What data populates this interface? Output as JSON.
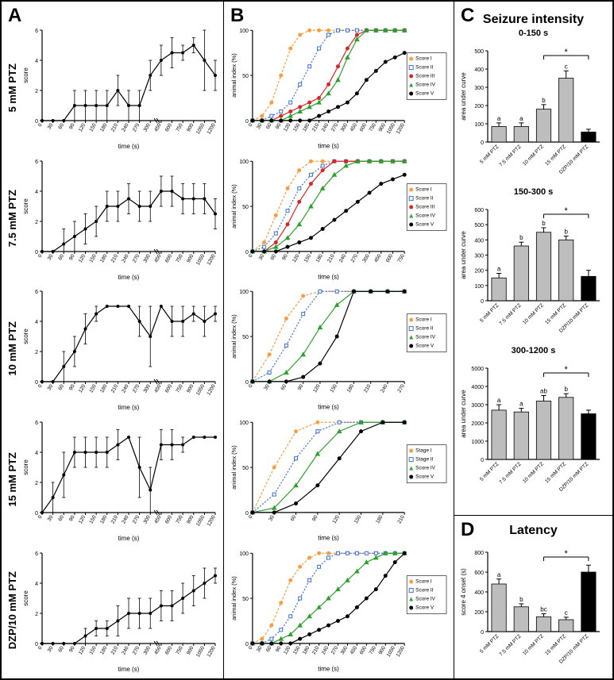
{
  "labels": {
    "panelA": "A",
    "panelB": "B",
    "panelC": "C",
    "panelD": "D",
    "seizure": "Seizure intensity",
    "latency": "Latency",
    "sub1": "0-150 s",
    "sub2": "150-300 s",
    "sub3": "300-1200 s"
  },
  "rows": [
    "5 mM PTZ",
    "7.5 mM PTZ",
    "10 mM PTZ",
    "15 mM PTZ",
    "DZP/10 mM PTZ"
  ],
  "colors": {
    "scoreI": "#f59e42",
    "scoreII": "#3b6fd6",
    "scoreIII": "#d62728",
    "scoreIV": "#2ca02c",
    "scoreV": "#000000",
    "barGray": "#bdbdbd",
    "barBlack": "#000000",
    "axis": "#000000"
  },
  "panelA_ylabel": "score",
  "panelA_xlabel": "time (s)",
  "panelA_ymax": 6,
  "panelA_ticks_short": [
    "0",
    "30",
    "60",
    "90",
    "120",
    "150",
    "180",
    "210",
    "240",
    "270",
    "300",
    "450",
    "600",
    "750",
    "900",
    "1050",
    "1200"
  ],
  "panelA_data": {
    "5 mM PTZ": {
      "y": [
        0,
        0,
        0,
        1,
        1,
        1,
        1,
        2,
        1,
        1,
        3,
        4,
        4.5,
        4.5,
        5,
        4,
        3
      ],
      "err": [
        0,
        0,
        0,
        1,
        1,
        1,
        1,
        1,
        1,
        1,
        1,
        1,
        1,
        0.5,
        0.5,
        2,
        1
      ]
    },
    "7.5 mM PTZ": {
      "y": [
        0,
        0,
        0.5,
        1,
        1.5,
        2,
        3,
        3,
        3.5,
        3,
        3,
        4,
        4,
        3.5,
        3.5,
        3.5,
        2.5
      ],
      "err": [
        0,
        0,
        1,
        1,
        1,
        1,
        1,
        1,
        1,
        1,
        1,
        1,
        1,
        1,
        1,
        1,
        1
      ]
    },
    "10 mM PTZ": {
      "y": [
        0,
        0,
        1,
        2,
        3.5,
        4.5,
        5,
        5,
        5,
        4,
        3,
        5,
        4,
        4,
        4.5,
        4,
        4.5
      ],
      "err": [
        0,
        0,
        1,
        1,
        1,
        0.5,
        0,
        0,
        0,
        1,
        2,
        0,
        1,
        1,
        0.5,
        1,
        0.5
      ]
    },
    "15 mM PTZ": {
      "y": [
        0,
        1,
        2.5,
        4,
        4,
        4,
        4,
        4.5,
        5,
        3,
        1.5,
        4.5,
        4.5,
        4.5,
        5,
        5,
        5
      ],
      "err": [
        0,
        1,
        1.5,
        1,
        1,
        1,
        1,
        1,
        0,
        2,
        1.5,
        1,
        1,
        0.5,
        0,
        0,
        0
      ]
    },
    "DZP/10 mM PTZ": {
      "y": [
        0,
        0,
        0,
        0,
        0.5,
        1,
        1,
        1.5,
        2,
        2,
        2,
        2.5,
        2.5,
        3,
        3.5,
        4,
        4.5
      ],
      "err": [
        0,
        0,
        0,
        0,
        0.5,
        0.5,
        0.5,
        1,
        1,
        1,
        1,
        1,
        1,
        1,
        1,
        1,
        0.5
      ]
    }
  },
  "panelB_ylabel": "animal index (%)",
  "panelB_xlabel": "time (s)",
  "panelB_ymax": 100,
  "panelB_xmax_per_row": {
    "5 mM PTZ": 1200,
    "7.5 mM PTZ": 750,
    "10 mM PTZ": 270,
    "15 mM PTZ": 210,
    "DZP/10 mM PTZ": 1200
  },
  "panelB_ticks": {
    "5 mM PTZ": [
      "0",
      "30",
      "60",
      "90",
      "120",
      "150",
      "180",
      "210",
      "240",
      "270",
      "300",
      "450",
      "600",
      "750",
      "900",
      "1050",
      "1200"
    ],
    "7.5 mM PTZ": [
      "0",
      "30",
      "60",
      "90",
      "120",
      "150",
      "180",
      "210",
      "240",
      "270",
      "300",
      "450",
      "600",
      "750"
    ],
    "10 mM PTZ": [
      "0",
      "30",
      "60",
      "90",
      "120",
      "150",
      "180",
      "210",
      "240",
      "270"
    ],
    "15 mM PTZ": [
      "0",
      "30",
      "60",
      "90",
      "120",
      "150",
      "180",
      "210"
    ],
    "DZP/10 mM PTZ": [
      "0",
      "30",
      "60",
      "90",
      "120",
      "150",
      "180",
      "210",
      "240",
      "270",
      "300",
      "450",
      "600",
      "750",
      "900",
      "1050",
      "1200"
    ]
  },
  "panelB_series": {
    "5 mM PTZ": {
      "legend": [
        "Score I",
        "Score II",
        "Score III",
        "Score IV",
        "Score V"
      ],
      "colors": [
        "scoreI",
        "scoreII",
        "scoreIII",
        "scoreIV",
        "scoreV"
      ],
      "data": {
        "Score I": [
          0,
          5,
          20,
          50,
          80,
          95,
          100,
          100,
          100,
          100,
          100,
          100,
          100,
          100,
          100,
          100,
          100
        ],
        "Score II": [
          0,
          0,
          5,
          10,
          20,
          40,
          60,
          80,
          95,
          100,
          100,
          100,
          100,
          100,
          100,
          100,
          100
        ],
        "Score III": [
          0,
          0,
          0,
          5,
          10,
          15,
          20,
          25,
          40,
          60,
          80,
          95,
          100,
          100,
          100,
          100,
          100
        ],
        "Score IV": [
          0,
          0,
          0,
          0,
          5,
          10,
          15,
          20,
          30,
          45,
          70,
          90,
          100,
          100,
          100,
          100,
          100
        ],
        "Score V": [
          0,
          0,
          0,
          0,
          0,
          0,
          0,
          5,
          10,
          15,
          20,
          30,
          45,
          55,
          65,
          70,
          75
        ]
      }
    },
    "7.5 mM PTZ": {
      "legend": [
        "Score I",
        "Score II",
        "Score III",
        "Score IV",
        "Score V"
      ],
      "colors": [
        "scoreI",
        "scoreII",
        "scoreIII",
        "scoreIV",
        "scoreV"
      ],
      "data": {
        "Score I": [
          0,
          10,
          40,
          70,
          90,
          100,
          100,
          100,
          100,
          100,
          100,
          100,
          100,
          100
        ],
        "Score II": [
          0,
          5,
          20,
          45,
          70,
          85,
          95,
          100,
          100,
          100,
          100,
          100,
          100,
          100
        ],
        "Score III": [
          0,
          0,
          10,
          30,
          55,
          75,
          90,
          100,
          100,
          100,
          100,
          100,
          100,
          100
        ],
        "Score IV": [
          0,
          0,
          5,
          15,
          30,
          50,
          70,
          85,
          95,
          100,
          100,
          100,
          100,
          100
        ],
        "Score V": [
          0,
          0,
          0,
          5,
          10,
          15,
          25,
          35,
          45,
          55,
          65,
          75,
          80,
          85
        ]
      }
    },
    "10 mM PTZ": {
      "legend": [
        "Score I",
        "Score II",
        "Score IV",
        "Score V"
      ],
      "colors": [
        "scoreI",
        "scoreII",
        "scoreIV",
        "scoreV"
      ],
      "data": {
        "Score I": [
          0,
          30,
          70,
          95,
          100,
          100,
          100,
          100,
          100,
          100
        ],
        "Score II": [
          0,
          10,
          40,
          75,
          100,
          100,
          100,
          100,
          100,
          100
        ],
        "Score IV": [
          0,
          0,
          10,
          30,
          60,
          85,
          100,
          100,
          100,
          100
        ],
        "Score V": [
          0,
          0,
          0,
          5,
          20,
          50,
          100,
          100,
          100,
          100
        ]
      }
    },
    "15 mM PTZ": {
      "legend": [
        "Stage I",
        "Stage II",
        "Score IV",
        "Score V"
      ],
      "colors": [
        "scoreI",
        "scoreII",
        "scoreIV",
        "scoreV"
      ],
      "data": {
        "Stage I": [
          0,
          50,
          90,
          100,
          100,
          100,
          100,
          100
        ],
        "Stage II": [
          0,
          20,
          60,
          90,
          100,
          100,
          100,
          100
        ],
        "Score IV": [
          0,
          5,
          30,
          65,
          90,
          100,
          100,
          100
        ],
        "Score V": [
          0,
          0,
          10,
          30,
          60,
          90,
          100,
          100
        ]
      }
    },
    "DZP/10 mM PTZ": {
      "legend": [
        "Score I",
        "Score II",
        "Score IV",
        "Score V"
      ],
      "colors": [
        "scoreI",
        "scoreII",
        "scoreIV",
        "scoreV"
      ],
      "data": {
        "Score I": [
          0,
          5,
          20,
          45,
          70,
          85,
          95,
          100,
          100,
          100,
          100,
          100,
          100,
          100,
          100,
          100,
          100
        ],
        "Score II": [
          0,
          0,
          5,
          15,
          30,
          50,
          70,
          85,
          95,
          100,
          100,
          100,
          100,
          100,
          100,
          100,
          100
        ],
        "Score IV": [
          0,
          0,
          0,
          5,
          10,
          20,
          30,
          40,
          50,
          60,
          70,
          80,
          90,
          95,
          100,
          100,
          100
        ],
        "Score V": [
          0,
          0,
          0,
          0,
          0,
          5,
          10,
          15,
          20,
          25,
          30,
          40,
          50,
          60,
          75,
          90,
          100
        ]
      }
    }
  },
  "panelC_ylabel": "area under curve",
  "panelC_categories": [
    "5 mM PTZ",
    "7.5 mM PTZ",
    "10 mM PTZ",
    "15 mM PTZ",
    "DZP/10 mM PTZ"
  ],
  "panelC_charts": [
    {
      "title": "0-150 s",
      "ymax": 500,
      "ystep": 100,
      "values": [
        85,
        85,
        180,
        350,
        55
      ],
      "err": [
        20,
        20,
        25,
        40,
        15
      ],
      "letters": [
        "a",
        "a",
        "b",
        "c",
        ""
      ],
      "sig": true,
      "barColors": [
        "barGray",
        "barGray",
        "barGray",
        "barGray",
        "barBlack"
      ]
    },
    {
      "title": "150-300 s",
      "ymax": 600,
      "ystep": 100,
      "values": [
        150,
        360,
        450,
        400,
        160
      ],
      "err": [
        30,
        25,
        30,
        25,
        40
      ],
      "letters": [
        "a",
        "b",
        "b",
        "b",
        ""
      ],
      "sig": true,
      "barColors": [
        "barGray",
        "barGray",
        "barGray",
        "barGray",
        "barBlack"
      ]
    },
    {
      "title": "300-1200 s",
      "ymax": 5000,
      "ystep": 1000,
      "values": [
        2700,
        2600,
        3200,
        3400,
        2500
      ],
      "err": [
        300,
        200,
        300,
        200,
        200
      ],
      "letters": [
        "a",
        "a",
        "ab",
        "b",
        ""
      ],
      "sig": true,
      "barColors": [
        "barGray",
        "barGray",
        "barGray",
        "barGray",
        "barBlack"
      ]
    }
  ],
  "panelD_ylabel": "score 4 onset (s)",
  "panelD": {
    "ymax": 800,
    "ystep": 200,
    "values": [
      480,
      250,
      150,
      120,
      600
    ],
    "err": [
      50,
      30,
      30,
      25,
      70
    ],
    "letters": [
      "a",
      "b",
      "bc",
      "c",
      ""
    ],
    "sig": true,
    "barColors": [
      "barGray",
      "barGray",
      "barGray",
      "barGray",
      "barBlack"
    ]
  }
}
